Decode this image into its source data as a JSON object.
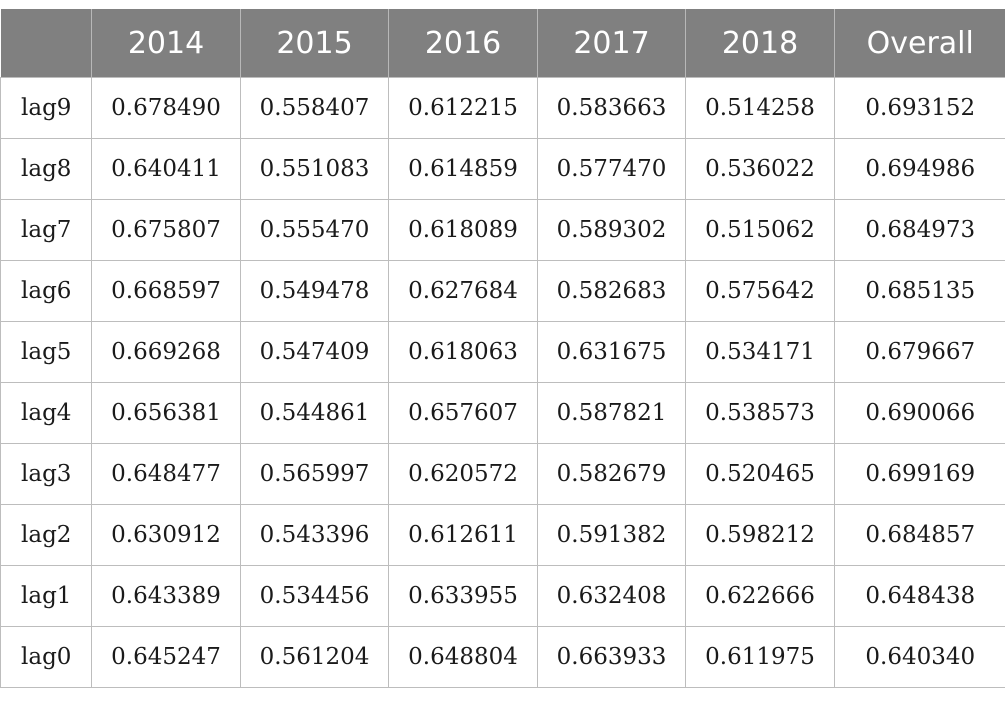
{
  "chart_data": {
    "type": "table",
    "columns": [
      "",
      "2014",
      "2015",
      "2016",
      "2017",
      "2018",
      "Overall"
    ],
    "rows": [
      {
        "label": "lag9",
        "values": [
          "0.678490",
          "0.558407",
          "0.612215",
          "0.583663",
          "0.514258",
          "0.693152"
        ]
      },
      {
        "label": "lag8",
        "values": [
          "0.640411",
          "0.551083",
          "0.614859",
          "0.577470",
          "0.536022",
          "0.694986"
        ]
      },
      {
        "label": "lag7",
        "values": [
          "0.675807",
          "0.555470",
          "0.618089",
          "0.589302",
          "0.515062",
          "0.684973"
        ]
      },
      {
        "label": "lag6",
        "values": [
          "0.668597",
          "0.549478",
          "0.627684",
          "0.582683",
          "0.575642",
          "0.685135"
        ]
      },
      {
        "label": "lag5",
        "values": [
          "0.669268",
          "0.547409",
          "0.618063",
          "0.631675",
          "0.534171",
          "0.679667"
        ]
      },
      {
        "label": "lag4",
        "values": [
          "0.656381",
          "0.544861",
          "0.657607",
          "0.587821",
          "0.538573",
          "0.690066"
        ]
      },
      {
        "label": "lag3",
        "values": [
          "0.648477",
          "0.565997",
          "0.620572",
          "0.582679",
          "0.520465",
          "0.699169"
        ]
      },
      {
        "label": "lag2",
        "values": [
          "0.630912",
          "0.543396",
          "0.612611",
          "0.591382",
          "0.598212",
          "0.684857"
        ]
      },
      {
        "label": "lag1",
        "values": [
          "0.643389",
          "0.534456",
          "0.633955",
          "0.632408",
          "0.622666",
          "0.648438"
        ]
      },
      {
        "label": "lag0",
        "values": [
          "0.645247",
          "0.561204",
          "0.648804",
          "0.663933",
          "0.611975",
          "0.640340"
        ]
      }
    ]
  },
  "colors": {
    "header_background": "#808080",
    "header_text": "#ffffff",
    "body_text": "#1a1a1a",
    "grid_line": "#bdbdbd"
  }
}
